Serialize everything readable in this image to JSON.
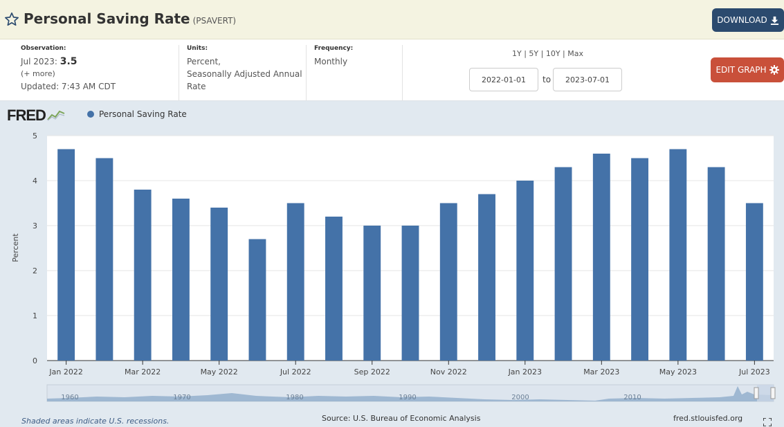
{
  "header": {
    "title": "Personal Saving Rate",
    "series_id": "(PSAVERT)",
    "download_label": "DOWNLOAD",
    "icons": [
      "star-icon",
      "download-icon"
    ]
  },
  "meta": {
    "observation_label": "Observation:",
    "observation_date": "Jul 2023:",
    "observation_value": "3.5",
    "more_label": "(+ more)",
    "updated": "Updated: 7:43 AM CDT",
    "units_label": "Units:",
    "units_line1": "Percent,",
    "units_line2": "Seasonally Adjusted Annual",
    "units_line3": "Rate",
    "frequency_label": "Frequency:",
    "frequency_value": "Monthly",
    "range_links": "1Y | 5Y | 10Y | Max",
    "date_start": "2022-01-01",
    "to_label": "to",
    "date_end": "2023-07-01",
    "edit_label": "EDIT GRAPH",
    "icons": [
      "gear-icon"
    ]
  },
  "chart_logo": "FRED",
  "footer": {
    "note": "Shaded areas indicate U.S. recessions.",
    "source": "Source: U.S. Bureau of Economic Analysis",
    "site": "fred.stlouisfed.org"
  },
  "navigator": {
    "labels": [
      "1960",
      "1970",
      "1980",
      "1990",
      "2000",
      "2010"
    ]
  },
  "colors": {
    "bar": "#4472a8",
    "title_bar": "#f4f3e1",
    "chart_bg": "#e1e9f0",
    "download_btn": "#2b4a6e",
    "edit_btn": "#c9503a"
  },
  "chart_data": {
    "type": "bar",
    "title": "",
    "ylabel": "Percent",
    "xlabel": "",
    "ylim": [
      0,
      5
    ],
    "yticks": [
      0,
      1,
      2,
      3,
      4,
      5
    ],
    "grid": true,
    "legend_placement": "top-left",
    "categories": [
      "Jan 2022",
      "Feb 2022",
      "Mar 2022",
      "Apr 2022",
      "May 2022",
      "Jun 2022",
      "Jul 2022",
      "Aug 2022",
      "Sep 2022",
      "Oct 2022",
      "Nov 2022",
      "Dec 2022",
      "Jan 2023",
      "Feb 2023",
      "Mar 2023",
      "Apr 2023",
      "May 2023",
      "Jun 2023",
      "Jul 2023"
    ],
    "tick_labels": [
      "Jan 2022",
      "Mar 2022",
      "May 2022",
      "Jul 2022",
      "Sep 2022",
      "Nov 2022",
      "Jan 2023",
      "Mar 2023",
      "May 2023",
      "Jul 2023"
    ],
    "series": [
      {
        "name": "Personal Saving Rate",
        "values": [
          4.7,
          4.5,
          3.8,
          3.6,
          3.4,
          2.7,
          3.5,
          3.2,
          3.0,
          3.0,
          3.5,
          3.7,
          4.0,
          4.3,
          4.6,
          4.5,
          4.7,
          4.3,
          3.5
        ]
      }
    ]
  }
}
